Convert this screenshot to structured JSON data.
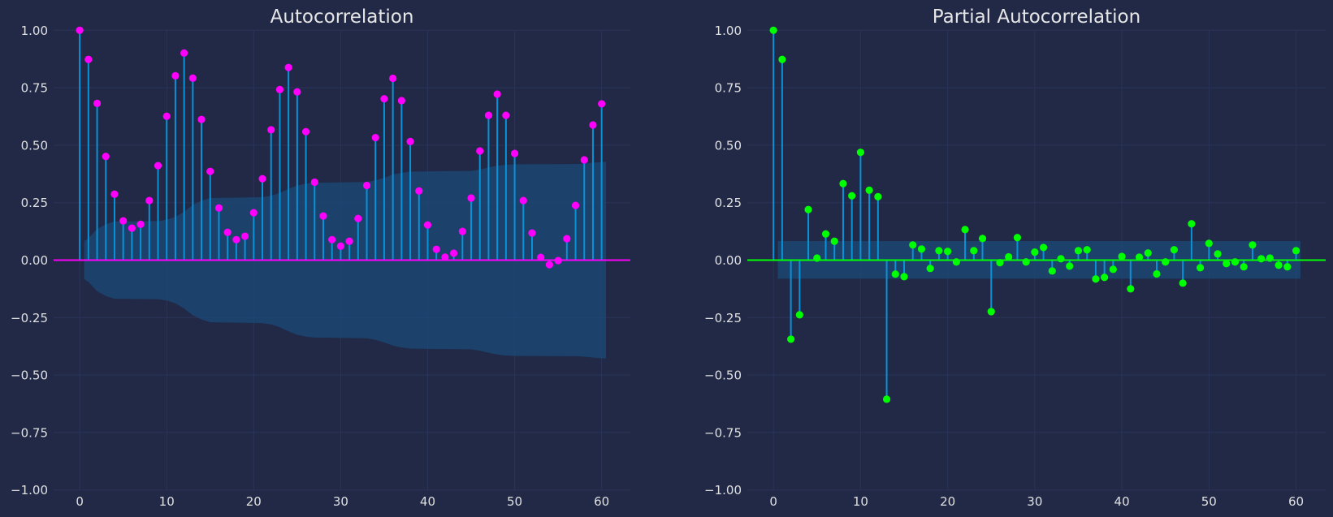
{
  "colors": {
    "background": "#212946",
    "grid": "#2a3459",
    "stem": "#0892d8",
    "band": "#1b4a78",
    "acf_marker": "#ff00ff",
    "pacf_marker": "#00ff00"
  },
  "chart_data": [
    {
      "type": "scatter",
      "kind": "stem",
      "title": "Autocorrelation",
      "xlabel": "",
      "ylabel": "",
      "xlim": [
        -3,
        63.3
      ],
      "ylim": [
        -1.0,
        1.0
      ],
      "grid": true,
      "xticks": [
        0,
        10,
        20,
        30,
        40,
        50,
        60
      ],
      "xtick_labels": [
        "0",
        "10",
        "20",
        "30",
        "40",
        "50",
        "60"
      ],
      "yticks": [
        1.0,
        0.75,
        0.5,
        0.25,
        0.0,
        -0.25,
        -0.5,
        -0.75,
        -1.0
      ],
      "ytick_labels": [
        "1.00",
        "0.75",
        "0.50",
        "0.25",
        "0.00",
        "−0.25",
        "−0.50",
        "−0.75",
        "−1.00"
      ],
      "x": [
        0,
        1,
        2,
        3,
        4,
        5,
        6,
        7,
        8,
        9,
        10,
        11,
        12,
        13,
        14,
        15,
        16,
        17,
        18,
        19,
        20,
        21,
        22,
        23,
        24,
        25,
        26,
        27,
        28,
        29,
        30,
        31,
        32,
        33,
        34,
        35,
        36,
        37,
        38,
        39,
        40,
        41,
        42,
        43,
        44,
        45,
        46,
        47,
        48,
        49,
        50,
        51,
        52,
        53,
        54,
        55,
        56,
        57,
        58,
        59,
        60
      ],
      "values": [
        1.0,
        0.873,
        0.682,
        0.451,
        0.287,
        0.171,
        0.139,
        0.156,
        0.259,
        0.411,
        0.626,
        0.802,
        0.901,
        0.792,
        0.612,
        0.386,
        0.227,
        0.121,
        0.089,
        0.104,
        0.206,
        0.354,
        0.567,
        0.742,
        0.838,
        0.732,
        0.559,
        0.339,
        0.192,
        0.089,
        0.061,
        0.082,
        0.181,
        0.325,
        0.533,
        0.702,
        0.791,
        0.694,
        0.516,
        0.301,
        0.153,
        0.047,
        0.013,
        0.03,
        0.125,
        0.27,
        0.475,
        0.63,
        0.722,
        0.63,
        0.464,
        0.259,
        0.118,
        0.012,
        -0.02,
        -0.002,
        0.093,
        0.238,
        0.436,
        0.588,
        0.68
      ],
      "confidence_band": {
        "x": [
          0.5,
          1,
          2,
          3,
          4,
          9,
          10,
          11,
          12,
          13,
          14,
          15,
          21,
          22,
          23,
          24,
          25,
          26,
          27,
          33,
          34,
          35,
          36,
          37,
          38,
          39,
          45,
          46,
          47,
          48,
          49,
          50,
          51,
          57,
          58,
          59,
          60.5
        ],
        "upper": [
          0.082,
          0.095,
          0.135,
          0.156,
          0.168,
          0.17,
          0.176,
          0.188,
          0.21,
          0.24,
          0.258,
          0.27,
          0.274,
          0.28,
          0.292,
          0.31,
          0.325,
          0.333,
          0.337,
          0.34,
          0.347,
          0.358,
          0.372,
          0.38,
          0.385,
          0.386,
          0.388,
          0.394,
          0.403,
          0.411,
          0.415,
          0.417,
          0.417,
          0.418,
          0.42,
          0.424,
          0.428
        ],
        "lower": [
          -0.082,
          -0.095,
          -0.135,
          -0.156,
          -0.168,
          -0.17,
          -0.176,
          -0.188,
          -0.21,
          -0.24,
          -0.258,
          -0.27,
          -0.274,
          -0.28,
          -0.292,
          -0.31,
          -0.325,
          -0.333,
          -0.337,
          -0.34,
          -0.347,
          -0.358,
          -0.372,
          -0.38,
          -0.385,
          -0.386,
          -0.388,
          -0.394,
          -0.403,
          -0.411,
          -0.415,
          -0.417,
          -0.417,
          -0.418,
          -0.42,
          -0.424,
          -0.428
        ]
      }
    },
    {
      "type": "scatter",
      "kind": "stem",
      "title": "Partial Autocorrelation",
      "xlabel": "",
      "ylabel": "",
      "xlim": [
        -3,
        63.4
      ],
      "ylim": [
        -1.0,
        1.0
      ],
      "grid": true,
      "xticks": [
        0,
        10,
        20,
        30,
        40,
        50,
        60
      ],
      "xtick_labels": [
        "0",
        "10",
        "20",
        "30",
        "40",
        "50",
        "60"
      ],
      "yticks": [
        1.0,
        0.75,
        0.5,
        0.25,
        0.0,
        -0.25,
        -0.5,
        -0.75,
        -1.0
      ],
      "ytick_labels": [
        "1.00",
        "0.75",
        "0.50",
        "0.25",
        "0.00",
        "−0.25",
        "−0.50",
        "−0.75",
        "−1.00"
      ],
      "x": [
        0,
        1,
        2,
        3,
        4,
        5,
        6,
        7,
        8,
        9,
        10,
        11,
        12,
        13,
        14,
        15,
        16,
        17,
        18,
        19,
        20,
        21,
        22,
        23,
        24,
        25,
        26,
        27,
        28,
        29,
        30,
        31,
        32,
        33,
        34,
        35,
        36,
        37,
        38,
        39,
        40,
        41,
        42,
        43,
        44,
        45,
        46,
        47,
        48,
        49,
        50,
        51,
        52,
        53,
        54,
        55,
        56,
        57,
        58,
        59,
        60
      ],
      "values": [
        1.0,
        0.873,
        -0.344,
        -0.238,
        0.22,
        0.009,
        0.114,
        0.082,
        0.333,
        0.28,
        0.469,
        0.304,
        0.276,
        -0.605,
        -0.061,
        -0.072,
        0.066,
        0.048,
        -0.036,
        0.041,
        0.038,
        -0.008,
        0.133,
        0.041,
        0.094,
        -0.224,
        -0.011,
        0.014,
        0.098,
        -0.008,
        0.035,
        0.055,
        -0.047,
        0.006,
        -0.026,
        0.041,
        0.045,
        -0.082,
        -0.075,
        -0.04,
        0.016,
        -0.125,
        0.013,
        0.031,
        -0.06,
        -0.008,
        0.045,
        -0.1,
        0.158,
        -0.033,
        0.073,
        0.027,
        -0.015,
        -0.008,
        -0.029,
        0.066,
        0.006,
        0.009,
        -0.022,
        -0.029,
        0.041
      ],
      "confidence_band": {
        "x": [
          0.5,
          60.5
        ],
        "upper": [
          0.083,
          0.083
        ],
        "lower": [
          -0.081,
          -0.081
        ]
      }
    }
  ]
}
